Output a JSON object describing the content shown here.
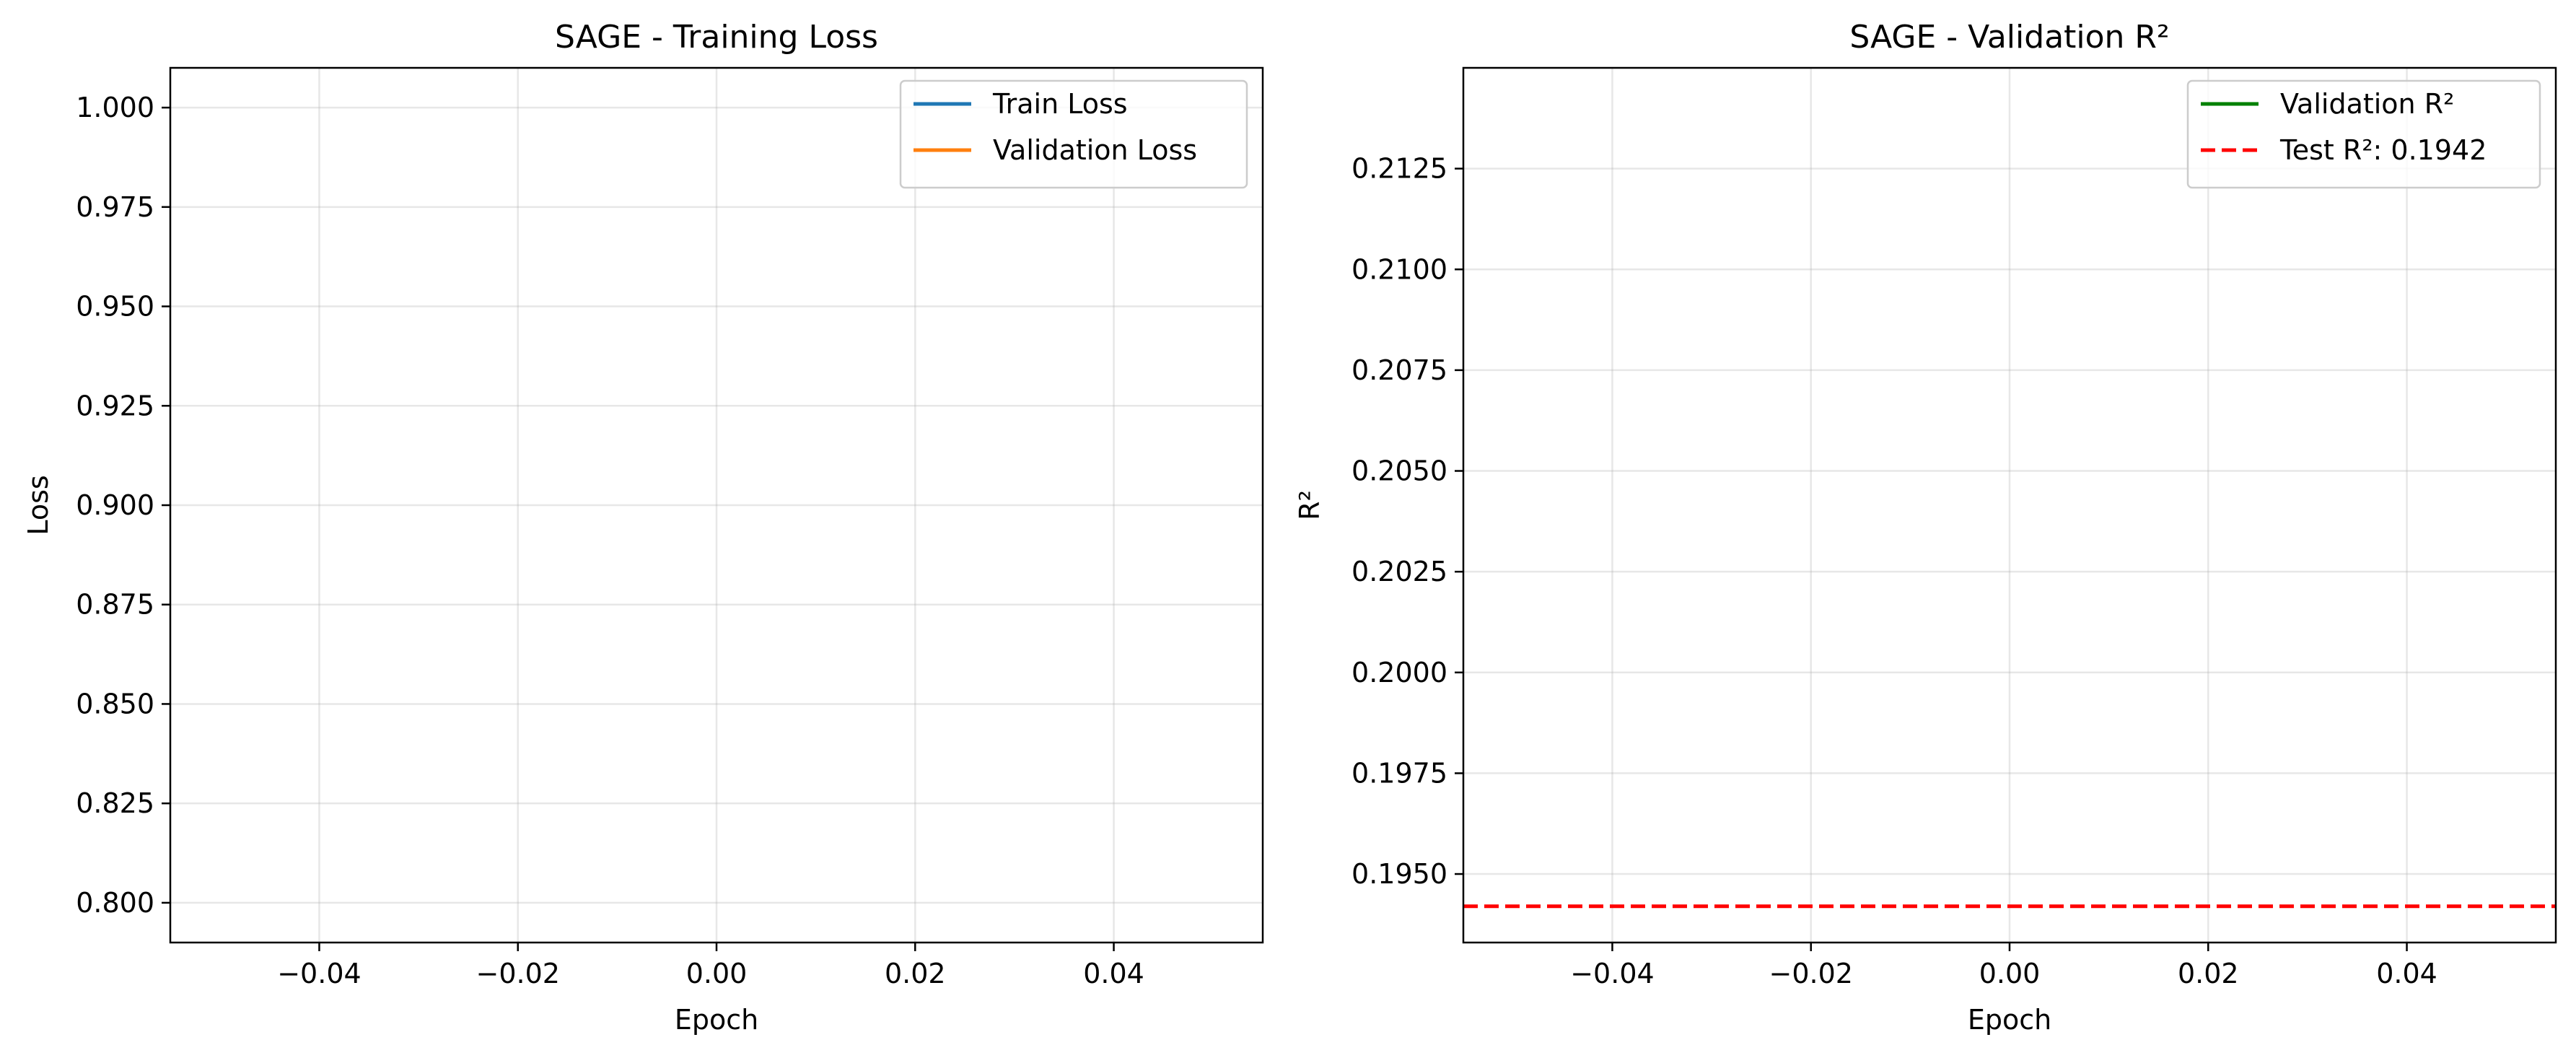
{
  "chart_data": [
    {
      "type": "line",
      "title": "SAGE - Training Loss",
      "xlabel": "Epoch",
      "ylabel": "Loss",
      "xlim": [
        -0.055,
        0.055
      ],
      "ylim": [
        0.79,
        1.01
      ],
      "xticks": [
        -0.04,
        -0.02,
        0.0,
        0.02,
        0.04
      ],
      "xtick_labels": [
        "−0.04",
        "−0.02",
        "0.00",
        "0.02",
        "0.04"
      ],
      "yticks": [
        0.8,
        0.825,
        0.85,
        0.875,
        0.9,
        0.925,
        0.95,
        0.975,
        1.0
      ],
      "ytick_labels": [
        "0.800",
        "0.825",
        "0.850",
        "0.875",
        "0.900",
        "0.925",
        "0.950",
        "0.975",
        "1.000"
      ],
      "grid": true,
      "legend_placement": "top-right",
      "series": [
        {
          "name": "Train Loss",
          "color": "#1f77b4",
          "style": "solid",
          "x": [],
          "y": []
        },
        {
          "name": "Validation Loss",
          "color": "#ff7f0e",
          "style": "solid",
          "x": [],
          "y": []
        }
      ],
      "hlines": []
    },
    {
      "type": "line",
      "title": "SAGE - Validation R²",
      "xlabel": "Epoch",
      "ylabel": "R²",
      "xlim": [
        -0.055,
        0.055
      ],
      "ylim": [
        0.1933,
        0.215
      ],
      "xticks": [
        -0.04,
        -0.02,
        0.0,
        0.02,
        0.04
      ],
      "xtick_labels": [
        "−0.04",
        "−0.02",
        "0.00",
        "0.02",
        "0.04"
      ],
      "yticks": [
        0.195,
        0.1975,
        0.2,
        0.2025,
        0.205,
        0.2075,
        0.21,
        0.2125
      ],
      "ytick_labels": [
        "0.1950",
        "0.1975",
        "0.2000",
        "0.2025",
        "0.2050",
        "0.2075",
        "0.2100",
        "0.2125"
      ],
      "grid": true,
      "legend_placement": "top-right",
      "series": [
        {
          "name": "Validation R²",
          "color": "#008000",
          "style": "solid",
          "x": [],
          "y": []
        }
      ],
      "hlines": [
        {
          "name": "Test R²: 0.1942",
          "value": 0.1942,
          "color": "#ff0000",
          "style": "dashed"
        }
      ]
    }
  ]
}
